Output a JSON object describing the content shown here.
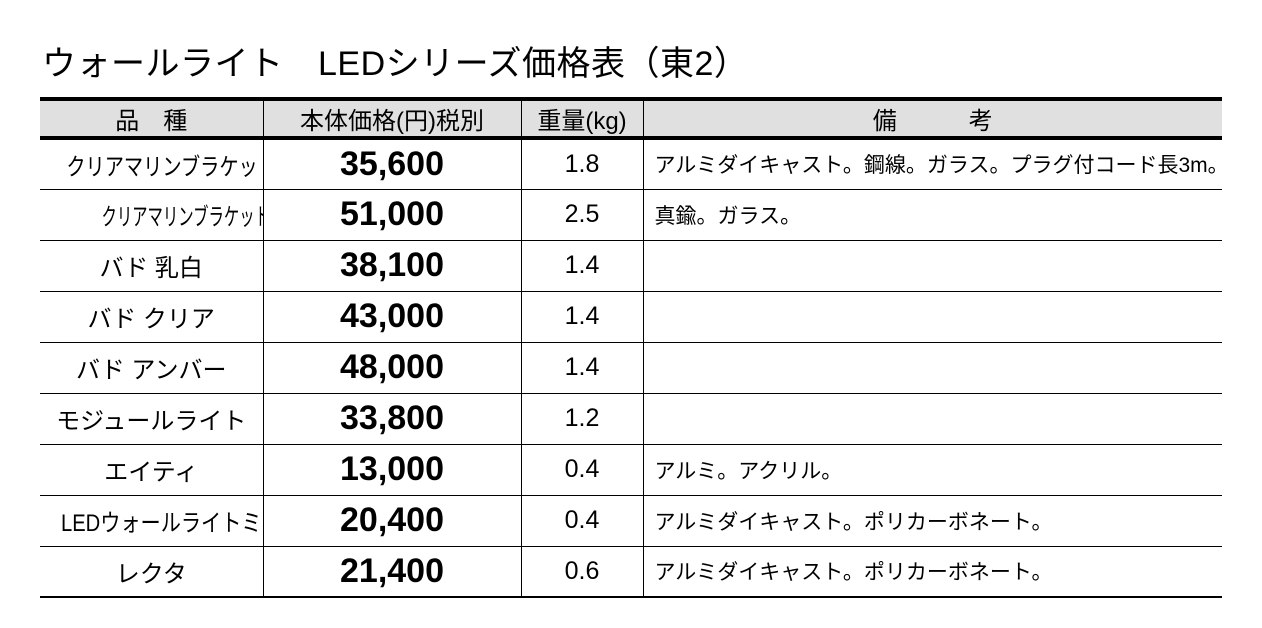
{
  "title": "ウォールライト　LEDシリーズ価格表（東2）",
  "colors": {
    "header_bg": "#e0e0e0",
    "border": "#000000",
    "text": "#000000"
  },
  "table": {
    "headers": {
      "product": "品　種",
      "price": "本体価格(円)税別",
      "weight": "重量(kg)",
      "remarks": "備　　　考"
    },
    "rows": [
      {
        "name": "クリアマリンブラケット",
        "price": "35,600",
        "weight": "1.8",
        "remarks": "アルミダイキャスト。鋼線。ガラス。プラグ付コード長3m。"
      },
      {
        "name": "クリアマリンブラケット ブラス",
        "price": "51,000",
        "weight": "2.5",
        "remarks": "真鍮。ガラス。"
      },
      {
        "name": "バド 乳白",
        "price": "38,100",
        "weight": "1.4",
        "remarks": ""
      },
      {
        "name": "バド クリア",
        "price": "43,000",
        "weight": "1.4",
        "remarks": ""
      },
      {
        "name": "バド アンバー",
        "price": "48,000",
        "weight": "1.4",
        "remarks": ""
      },
      {
        "name": "モジュールライト",
        "price": "33,800",
        "weight": "1.2",
        "remarks": ""
      },
      {
        "name": "エイティ",
        "price": "13,000",
        "weight": "0.4",
        "remarks": "アルミ。アクリル。"
      },
      {
        "name": "LEDウォールライトミニ",
        "price": "20,400",
        "weight": "0.4",
        "remarks": "アルミダイキャスト。ポリカーボネート。"
      },
      {
        "name": "レクタ",
        "price": "21,400",
        "weight": "0.6",
        "remarks": "アルミダイキャスト。ポリカーボネート。"
      }
    ]
  }
}
